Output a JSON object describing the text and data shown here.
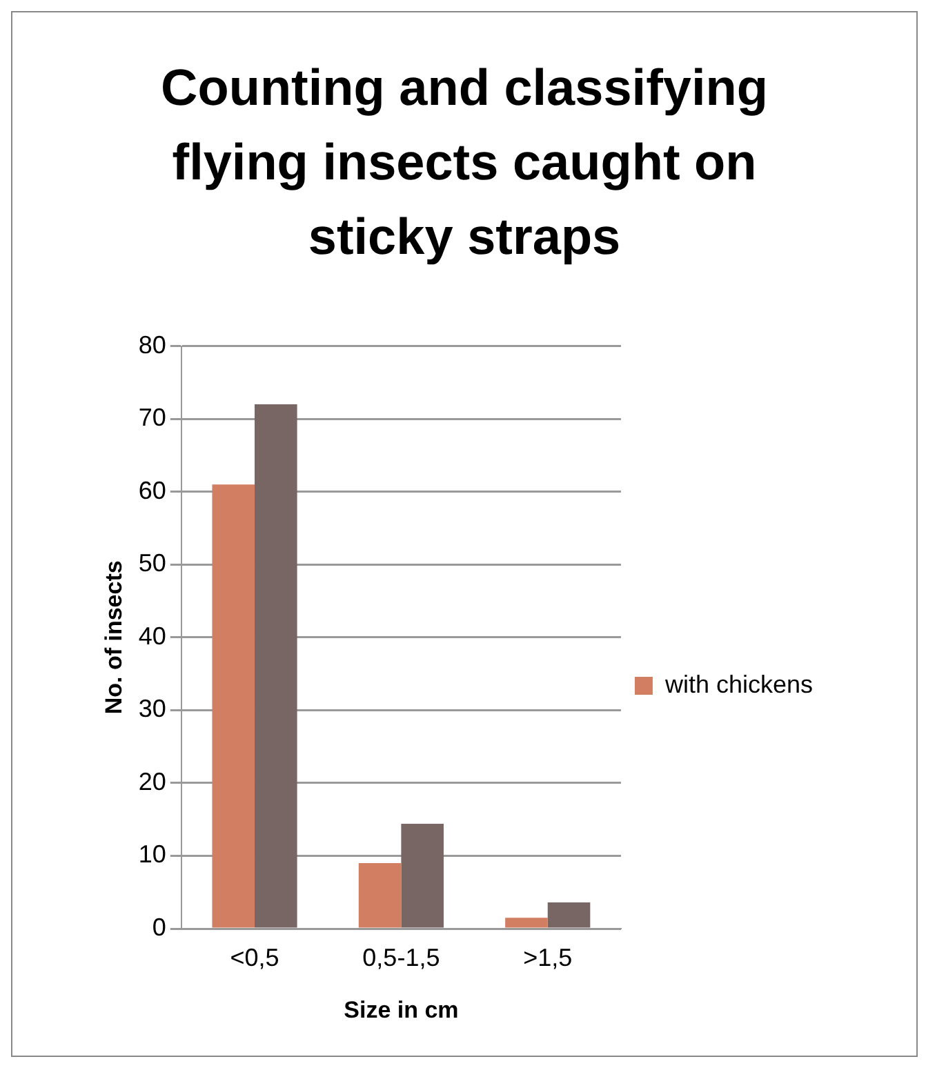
{
  "chart_data": {
    "type": "bar",
    "title": "Counting and classifying flying insects caught on sticky straps",
    "xlabel": "Size in cm",
    "ylabel": "No. of insects",
    "categories": [
      "<0,5",
      "0,5-1,5",
      ">1,5"
    ],
    "series": [
      {
        "name": "with chickens",
        "color": "#d17e63",
        "values": [
          61,
          9,
          1.5
        ]
      },
      {
        "color": "#786664",
        "values": [
          72,
          14.4,
          3.6
        ]
      }
    ],
    "ylim": [
      0,
      80
    ],
    "yticks": [
      0,
      10,
      20,
      30,
      40,
      50,
      60,
      70,
      80
    ],
    "grid": "y",
    "legend": "right"
  }
}
